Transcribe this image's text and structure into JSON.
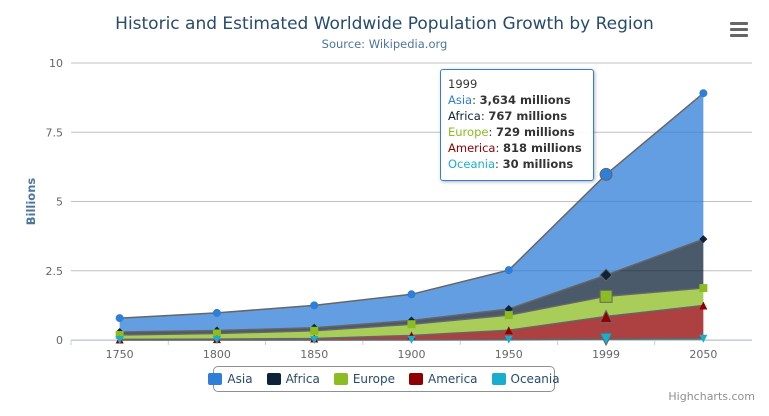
{
  "chart_data": {
    "type": "area",
    "stacking": "normal",
    "title": "Historic and Estimated Worldwide Population Growth by Region",
    "subtitle": "Source: Wikipedia.org",
    "ylabel": "Billions",
    "categories": [
      "1750",
      "1800",
      "1850",
      "1900",
      "1950",
      "1999",
      "2050"
    ],
    "y_ticks": [
      "0",
      "2.5",
      "5",
      "7.5",
      "10"
    ],
    "ylim_billions": [
      0,
      10
    ],
    "grid": true,
    "legend_position": "bottom",
    "series": [
      {
        "name": "Asia",
        "color": "#2f7ed8",
        "marker": "circle",
        "values": [
          502,
          635,
          809,
          947,
          1402,
          3634,
          5268
        ]
      },
      {
        "name": "Africa",
        "color": "#0d233a",
        "marker": "diamond",
        "values": [
          106,
          107,
          111,
          133,
          221,
          767,
          1766
        ]
      },
      {
        "name": "Europe",
        "color": "#8bbc21",
        "marker": "square",
        "values": [
          163,
          203,
          276,
          408,
          547,
          729,
          628
        ]
      },
      {
        "name": "America",
        "color": "#910000",
        "marker": "triangle",
        "values": [
          18,
          31,
          54,
          156,
          339,
          818,
          1201
        ]
      },
      {
        "name": "Oceania",
        "color": "#1aadce",
        "marker": "triangle-down",
        "values": [
          2,
          2,
          2,
          6,
          13,
          30,
          46
        ]
      }
    ]
  },
  "tooltip": {
    "header": "1999",
    "rows": [
      {
        "name": "Asia",
        "value": "3,634 millions",
        "color": "#2f7ed8"
      },
      {
        "name": "Africa",
        "value": "767 millions",
        "color": "#0d233a"
      },
      {
        "name": "Europe",
        "value": "729 millions",
        "color": "#8bbc21"
      },
      {
        "name": "America",
        "value": "818 millions",
        "color": "#910000"
      },
      {
        "name": "Oceania",
        "value": "30 millions",
        "color": "#1aadce"
      }
    ]
  },
  "menu_icon": "hamburger-menu-icon",
  "credits": "Highcharts.com"
}
